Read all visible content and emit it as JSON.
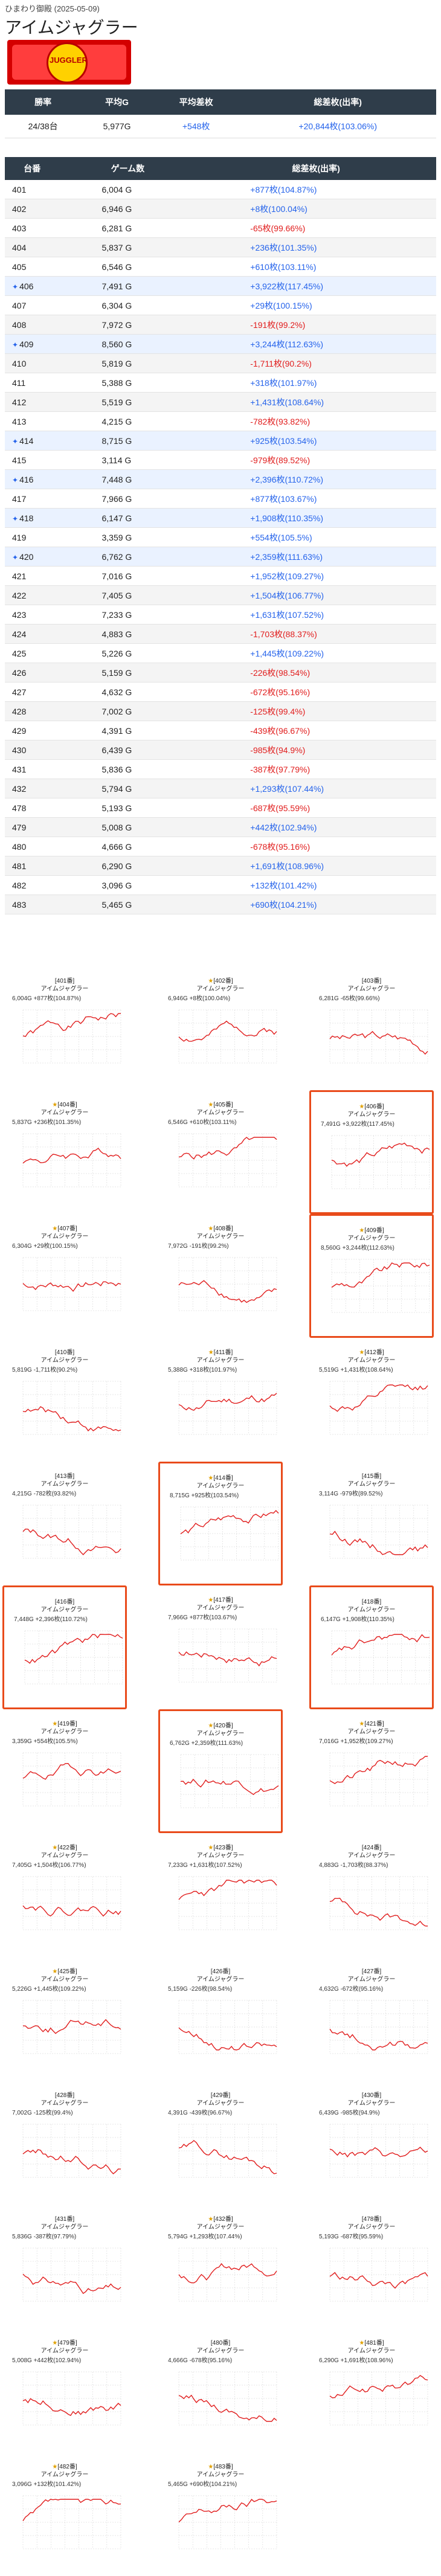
{
  "header": {
    "subtitle": "ひまわり御殿 (2025-05-09)",
    "title": "アイムジャグラー",
    "banner_text": "JUGGLER"
  },
  "summary": {
    "headers": [
      "勝率",
      "平均G",
      "平均差枚",
      "総差枚(出率)"
    ],
    "values": [
      "24/38台",
      "5,977G",
      "+548枚",
      "+20,844枚(103.06%)"
    ]
  },
  "table": {
    "headers": [
      "台番",
      "ゲーム数",
      "総差枚(出率)"
    ],
    "rows": [
      {
        "no": "401",
        "games": "6,004 G",
        "diff": "+877枚(104.87%)",
        "sign": "pos",
        "star": false
      },
      {
        "no": "402",
        "games": "6,946 G",
        "diff": "+8枚(100.04%)",
        "sign": "pos",
        "star": false
      },
      {
        "no": "403",
        "games": "6,281 G",
        "diff": "-65枚(99.66%)",
        "sign": "neg",
        "star": false
      },
      {
        "no": "404",
        "games": "5,837 G",
        "diff": "+236枚(101.35%)",
        "sign": "pos",
        "star": false
      },
      {
        "no": "405",
        "games": "6,546 G",
        "diff": "+610枚(103.11%)",
        "sign": "pos",
        "star": false
      },
      {
        "no": "406",
        "games": "7,491 G",
        "diff": "+3,922枚(117.45%)",
        "sign": "pos",
        "star": true
      },
      {
        "no": "407",
        "games": "6,304 G",
        "diff": "+29枚(100.15%)",
        "sign": "pos",
        "star": false
      },
      {
        "no": "408",
        "games": "7,972 G",
        "diff": "-191枚(99.2%)",
        "sign": "neg",
        "star": false
      },
      {
        "no": "409",
        "games": "8,560 G",
        "diff": "+3,244枚(112.63%)",
        "sign": "pos",
        "star": true
      },
      {
        "no": "410",
        "games": "5,819 G",
        "diff": "-1,711枚(90.2%)",
        "sign": "neg",
        "star": false
      },
      {
        "no": "411",
        "games": "5,388 G",
        "diff": "+318枚(101.97%)",
        "sign": "pos",
        "star": false
      },
      {
        "no": "412",
        "games": "5,519 G",
        "diff": "+1,431枚(108.64%)",
        "sign": "pos",
        "star": false
      },
      {
        "no": "413",
        "games": "4,215 G",
        "diff": "-782枚(93.82%)",
        "sign": "neg",
        "star": false
      },
      {
        "no": "414",
        "games": "8,715 G",
        "diff": "+925枚(103.54%)",
        "sign": "pos",
        "star": true
      },
      {
        "no": "415",
        "games": "3,114 G",
        "diff": "-979枚(89.52%)",
        "sign": "neg",
        "star": false
      },
      {
        "no": "416",
        "games": "7,448 G",
        "diff": "+2,396枚(110.72%)",
        "sign": "pos",
        "star": true
      },
      {
        "no": "417",
        "games": "7,966 G",
        "diff": "+877枚(103.67%)",
        "sign": "pos",
        "star": false
      },
      {
        "no": "418",
        "games": "6,147 G",
        "diff": "+1,908枚(110.35%)",
        "sign": "pos",
        "star": true
      },
      {
        "no": "419",
        "games": "3,359 G",
        "diff": "+554枚(105.5%)",
        "sign": "pos",
        "star": false
      },
      {
        "no": "420",
        "games": "6,762 G",
        "diff": "+2,359枚(111.63%)",
        "sign": "pos",
        "star": true
      },
      {
        "no": "421",
        "games": "7,016 G",
        "diff": "+1,952枚(109.27%)",
        "sign": "pos",
        "star": false
      },
      {
        "no": "422",
        "games": "7,405 G",
        "diff": "+1,504枚(106.77%)",
        "sign": "pos",
        "star": false
      },
      {
        "no": "423",
        "games": "7,233 G",
        "diff": "+1,631枚(107.52%)",
        "sign": "pos",
        "star": false
      },
      {
        "no": "424",
        "games": "4,883 G",
        "diff": "-1,703枚(88.37%)",
        "sign": "neg",
        "star": false
      },
      {
        "no": "425",
        "games": "5,226 G",
        "diff": "+1,445枚(109.22%)",
        "sign": "pos",
        "star": false
      },
      {
        "no": "426",
        "games": "5,159 G",
        "diff": "-226枚(98.54%)",
        "sign": "neg",
        "star": false
      },
      {
        "no": "427",
        "games": "4,632 G",
        "diff": "-672枚(95.16%)",
        "sign": "neg",
        "star": false
      },
      {
        "no": "428",
        "games": "7,002 G",
        "diff": "-125枚(99.4%)",
        "sign": "neg",
        "star": false
      },
      {
        "no": "429",
        "games": "4,391 G",
        "diff": "-439枚(96.67%)",
        "sign": "neg",
        "star": false
      },
      {
        "no": "430",
        "games": "6,439 G",
        "diff": "-985枚(94.9%)",
        "sign": "neg",
        "star": false
      },
      {
        "no": "431",
        "games": "5,836 G",
        "diff": "-387枚(97.79%)",
        "sign": "neg",
        "star": false
      },
      {
        "no": "432",
        "games": "5,794 G",
        "diff": "+1,293枚(107.44%)",
        "sign": "pos",
        "star": false
      },
      {
        "no": "478",
        "games": "5,193 G",
        "diff": "-687枚(95.59%)",
        "sign": "neg",
        "star": false
      },
      {
        "no": "479",
        "games": "5,008 G",
        "diff": "+442枚(102.94%)",
        "sign": "pos",
        "star": false
      },
      {
        "no": "480",
        "games": "4,666 G",
        "diff": "-678枚(95.16%)",
        "sign": "neg",
        "star": false
      },
      {
        "no": "481",
        "games": "6,290 G",
        "diff": "+1,691枚(108.96%)",
        "sign": "pos",
        "star": false
      },
      {
        "no": "482",
        "games": "3,096 G",
        "diff": "+132枚(101.42%)",
        "sign": "pos",
        "star": false
      },
      {
        "no": "483",
        "games": "5,465 G",
        "diff": "+690枚(104.21%)",
        "sign": "pos",
        "star": false
      }
    ]
  },
  "cards": {
    "machine": "アイムジャグラー",
    "items": [
      {
        "label": "[401番]",
        "stats": "6,004G +877枚(104.87%)",
        "sel": false,
        "medal": false
      },
      {
        "label": "[402番]",
        "stats": "6,946G +8枚(100.04%)",
        "sel": false,
        "medal": true
      },
      {
        "label": "[403番]",
        "stats": "6,281G -65枚(99.66%)",
        "sel": false,
        "medal": false
      },
      {
        "label": "[404番]",
        "stats": "5,837G +236枚(101.35%)",
        "sel": false,
        "medal": true
      },
      {
        "label": "[405番]",
        "stats": "6,546G +610枚(103.11%)",
        "sel": false,
        "medal": true
      },
      {
        "label": "[406番]",
        "stats": "7,491G +3,922枚(117.45%)",
        "sel": true,
        "medal": true
      },
      {
        "label": "[407番]",
        "stats": "6,304G +29枚(100.15%)",
        "sel": false,
        "medal": true
      },
      {
        "label": "[408番]",
        "stats": "7,972G -191枚(99.2%)",
        "sel": false,
        "medal": true
      },
      {
        "label": "[409番]",
        "stats": "8,560G +3,244枚(112.63%)",
        "sel": true,
        "medal": true
      },
      {
        "label": "[410番]",
        "stats": "5,819G -1,711枚(90.2%)",
        "sel": false,
        "medal": false
      },
      {
        "label": "[411番]",
        "stats": "5,388G +318枚(101.97%)",
        "sel": false,
        "medal": true
      },
      {
        "label": "[412番]",
        "stats": "5,519G +1,431枚(108.64%)",
        "sel": false,
        "medal": true
      },
      {
        "label": "[413番]",
        "stats": "4,215G -782枚(93.82%)",
        "sel": false,
        "medal": false
      },
      {
        "label": "[414番]",
        "stats": "8,715G +925枚(103.54%)",
        "sel": true,
        "medal": true
      },
      {
        "label": "[415番]",
        "stats": "3,114G -979枚(89.52%)",
        "sel": false,
        "medal": false
      },
      {
        "label": "[416番]",
        "stats": "7,448G +2,396枚(110.72%)",
        "sel": true,
        "medal": false
      },
      {
        "label": "[417番]",
        "stats": "7,966G +877枚(103.67%)",
        "sel": false,
        "medal": true
      },
      {
        "label": "[418番]",
        "stats": "6,147G +1,908枚(110.35%)",
        "sel": true,
        "medal": false
      },
      {
        "label": "[419番]",
        "stats": "3,359G +554枚(105.5%)",
        "sel": false,
        "medal": true
      },
      {
        "label": "[420番]",
        "stats": "6,762G +2,359枚(111.63%)",
        "sel": true,
        "medal": true
      },
      {
        "label": "[421番]",
        "stats": "7,016G +1,952枚(109.27%)",
        "sel": false,
        "medal": true
      },
      {
        "label": "[422番]",
        "stats": "7,405G +1,504枚(106.77%)",
        "sel": false,
        "medal": true
      },
      {
        "label": "[423番]",
        "stats": "7,233G +1,631枚(107.52%)",
        "sel": false,
        "medal": true
      },
      {
        "label": "[424番]",
        "stats": "4,883G -1,703枚(88.37%)",
        "sel": false,
        "medal": false
      },
      {
        "label": "[425番]",
        "stats": "5,226G +1,445枚(109.22%)",
        "sel": false,
        "medal": true
      },
      {
        "label": "[426番]",
        "stats": "5,159G -226枚(98.54%)",
        "sel": false,
        "medal": false
      },
      {
        "label": "[427番]",
        "stats": "4,632G -672枚(95.16%)",
        "sel": false,
        "medal": false
      },
      {
        "label": "[428番]",
        "stats": "7,002G -125枚(99.4%)",
        "sel": false,
        "medal": false
      },
      {
        "label": "[429番]",
        "stats": "4,391G -439枚(96.67%)",
        "sel": false,
        "medal": false
      },
      {
        "label": "[430番]",
        "stats": "6,439G -985枚(94.9%)",
        "sel": false,
        "medal": false
      },
      {
        "label": "[431番]",
        "stats": "5,836G -387枚(97.79%)",
        "sel": false,
        "medal": false
      },
      {
        "label": "[432番]",
        "stats": "5,794G +1,293枚(107.44%)",
        "sel": false,
        "medal": true
      },
      {
        "label": "[478番]",
        "stats": "5,193G -687枚(95.59%)",
        "sel": false,
        "medal": false
      },
      {
        "label": "[479番]",
        "stats": "5,008G +442枚(102.94%)",
        "sel": false,
        "medal": true
      },
      {
        "label": "[480番]",
        "stats": "4,666G -678枚(95.16%)",
        "sel": false,
        "medal": false
      },
      {
        "label": "[481番]",
        "stats": "6,290G +1,691枚(108.96%)",
        "sel": false,
        "medal": true
      },
      {
        "label": "[482番]",
        "stats": "3,096G +132枚(101.42%)",
        "sel": false,
        "medal": true
      },
      {
        "label": "[483番]",
        "stats": "5,465G +690枚(104.21%)",
        "sel": false,
        "medal": true
      }
    ]
  },
  "colors": {
    "line": "#e11d1d",
    "grid": "#cfcfcf",
    "pos": "#2563eb",
    "neg": "#e11d1d",
    "highlight": "#e94b1b"
  }
}
